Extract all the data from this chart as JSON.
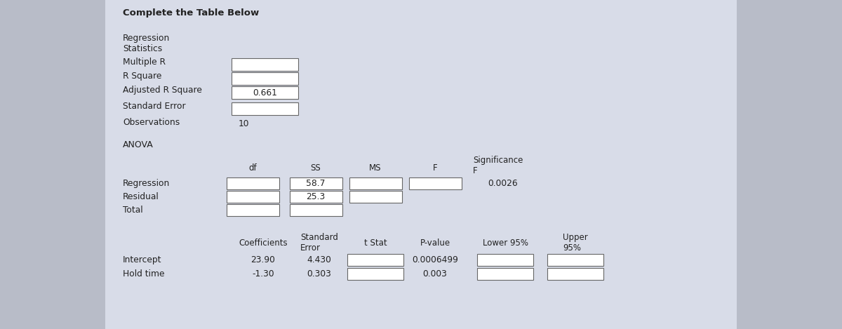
{
  "title": "Complete the Table Below",
  "outer_bg": "#b8bcc8",
  "inner_bg": "#cdd2de",
  "content_bg": "#d8dce8",
  "box_fc": "#ffffff",
  "box_ec": "#666666",
  "text_color": "#222222",
  "adjusted_r_square_val": "0.661",
  "observations_val": "10",
  "ss_values": [
    "58.7",
    "25.3",
    ""
  ],
  "sig_f_val": "0.0026",
  "coeff_vals": [
    "23.90",
    "-1.30"
  ],
  "std_err_vals": [
    "4.430",
    "0.303"
  ],
  "p_vals": [
    "0.0006499",
    "0.003"
  ]
}
